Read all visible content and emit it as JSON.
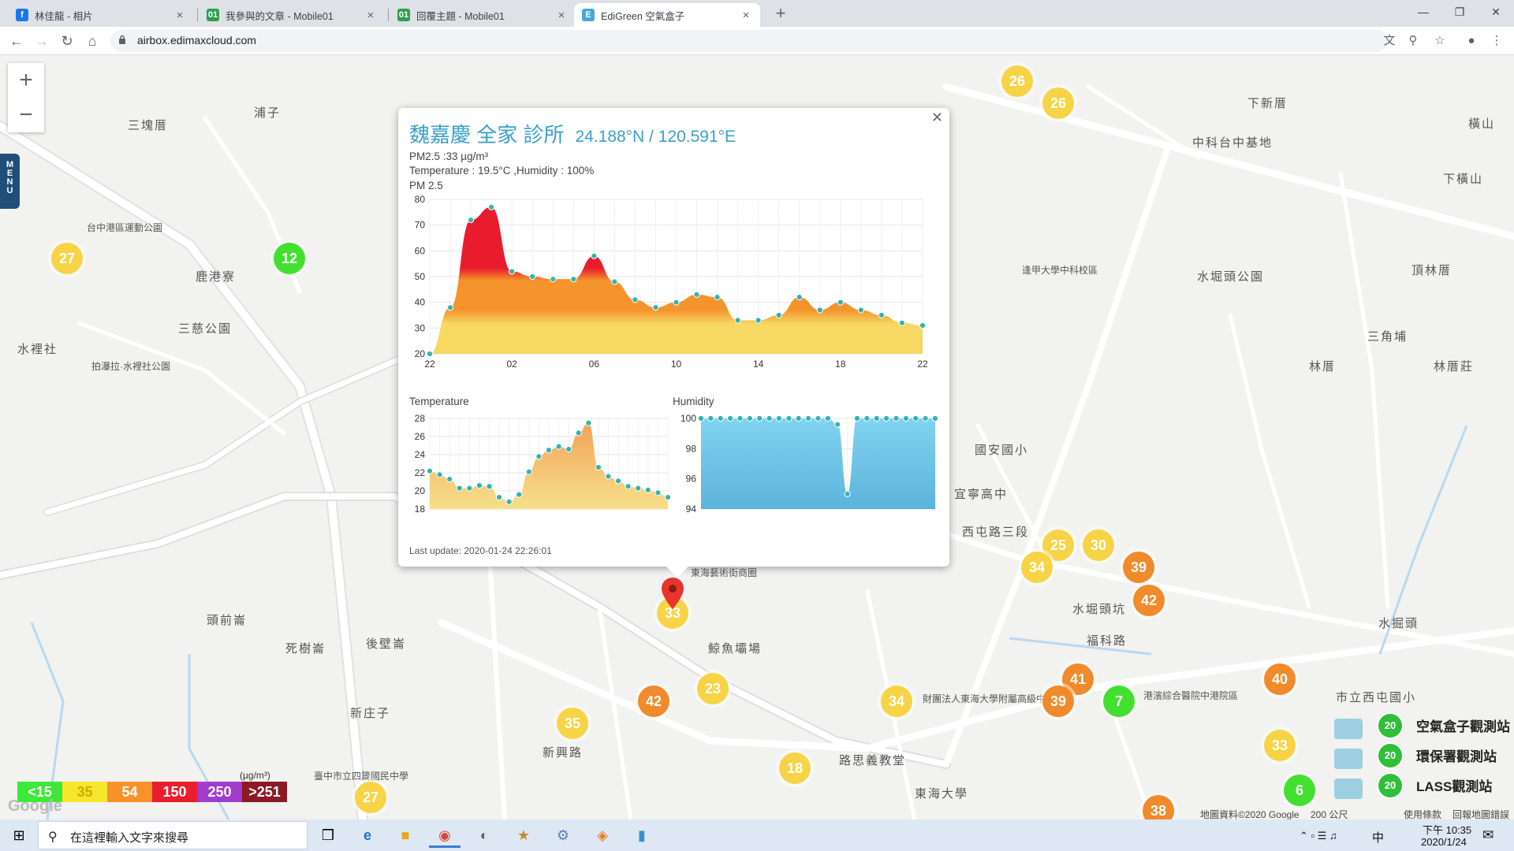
{
  "browser": {
    "tabs": [
      {
        "title": "林佳龍 - 相片",
        "favicon": "facebook-icon",
        "color": "#1877f2",
        "glyph": "f"
      },
      {
        "title": "我參與的文章 - Mobile01",
        "favicon": "mobile01-icon",
        "color": "#2e9e4f",
        "glyph": "01"
      },
      {
        "title": "回覆主題 - Mobile01",
        "favicon": "mobile01-icon",
        "color": "#2e9e4f",
        "glyph": "01"
      },
      {
        "title": "EdiGreen 空氣盒子",
        "favicon": "edigreen-icon",
        "color": "#44a7d8",
        "glyph": "E"
      }
    ],
    "url": "airbox.edimaxcloud.com"
  },
  "map": {
    "labels": [
      {
        "text": "三塊厝",
        "x": 162,
        "y": 148
      },
      {
        "text": "浦子",
        "x": 322,
        "y": 132
      },
      {
        "text": "台中港區運動公園",
        "x": 110,
        "y": 280
      },
      {
        "text": "鹿港寮",
        "x": 248,
        "y": 340
      },
      {
        "text": "三慈公園",
        "x": 226,
        "y": 406
      },
      {
        "text": "水裡社",
        "x": 22,
        "y": 432
      },
      {
        "text": "拍瀑拉·水裡社公園",
        "x": 116,
        "y": 456
      },
      {
        "text": "頭前崙",
        "x": 262,
        "y": 776
      },
      {
        "text": "死樹崙",
        "x": 362,
        "y": 812
      },
      {
        "text": "後壁崙",
        "x": 464,
        "y": 806
      },
      {
        "text": "新庄子",
        "x": 444,
        "y": 894
      },
      {
        "text": "臺中市立四箴國民中學",
        "x": 398,
        "y": 976
      },
      {
        "text": "東海藝術街商圈",
        "x": 876,
        "y": 718
      },
      {
        "text": "鯨魚壩場",
        "x": 898,
        "y": 812
      },
      {
        "text": "新興路",
        "x": 688,
        "y": 944
      },
      {
        "text": "路思義教堂",
        "x": 1064,
        "y": 954
      },
      {
        "text": "東海大學",
        "x": 1160,
        "y": 996
      },
      {
        "text": "財團法人東海大學附屬高級中等學校",
        "x": 1170,
        "y": 878
      },
      {
        "text": "中科台中基地",
        "x": 1512,
        "y": 170
      },
      {
        "text": "下新厝",
        "x": 1582,
        "y": 120
      },
      {
        "text": "橫山",
        "x": 1862,
        "y": 146
      },
      {
        "text": "下橫山",
        "x": 1830,
        "y": 216
      },
      {
        "text": "頂林厝",
        "x": 1790,
        "y": 332
      },
      {
        "text": "水堀頭公園",
        "x": 1518,
        "y": 340
      },
      {
        "text": "逢甲大學中科校區",
        "x": 1296,
        "y": 334
      },
      {
        "text": "三角埔",
        "x": 1734,
        "y": 416
      },
      {
        "text": "林厝",
        "x": 1660,
        "y": 454
      },
      {
        "text": "林厝莊",
        "x": 1818,
        "y": 454
      },
      {
        "text": "國安國小",
        "x": 1236,
        "y": 560
      },
      {
        "text": "宜寧高中",
        "x": 1210,
        "y": 616
      },
      {
        "text": "西屯路三段",
        "x": 1220,
        "y": 664
      },
      {
        "text": "水堀頭坑",
        "x": 1360,
        "y": 762
      },
      {
        "text": "福科路",
        "x": 1378,
        "y": 802
      },
      {
        "text": "水掘頭",
        "x": 1748,
        "y": 780
      },
      {
        "text": "港濱綜合醫院中港院區",
        "x": 1450,
        "y": 874
      },
      {
        "text": "市立西屯國小",
        "x": 1694,
        "y": 874
      }
    ],
    "markers": [
      {
        "value": "27",
        "x": 85,
        "y": 328,
        "level": "y"
      },
      {
        "value": "12",
        "x": 367,
        "y": 328,
        "level": "g"
      },
      {
        "value": "26",
        "x": 1290,
        "y": 103,
        "level": "y"
      },
      {
        "value": "26",
        "x": 1342,
        "y": 131,
        "level": "y"
      },
      {
        "value": "25",
        "x": 1342,
        "y": 692,
        "level": "y"
      },
      {
        "value": "30",
        "x": 1393,
        "y": 692,
        "level": "y"
      },
      {
        "value": "34",
        "x": 1315,
        "y": 720,
        "level": "y"
      },
      {
        "value": "39",
        "x": 1444,
        "y": 720,
        "level": "o"
      },
      {
        "value": "42",
        "x": 1457,
        "y": 762,
        "level": "o"
      },
      {
        "value": "33",
        "x": 853,
        "y": 778,
        "level": "y"
      },
      {
        "value": "42",
        "x": 829,
        "y": 890,
        "level": "o"
      },
      {
        "value": "23",
        "x": 904,
        "y": 874,
        "level": "y"
      },
      {
        "value": "35",
        "x": 726,
        "y": 918,
        "level": "y"
      },
      {
        "value": "34",
        "x": 1137,
        "y": 890,
        "level": "y"
      },
      {
        "value": "41",
        "x": 1367,
        "y": 862,
        "level": "o"
      },
      {
        "value": "39",
        "x": 1342,
        "y": 890,
        "level": "o"
      },
      {
        "value": "7",
        "x": 1419,
        "y": 890,
        "level": "g"
      },
      {
        "value": "40",
        "x": 1623,
        "y": 862,
        "level": "o"
      },
      {
        "value": "33",
        "x": 1623,
        "y": 946,
        "level": "y"
      },
      {
        "value": "18",
        "x": 1008,
        "y": 975,
        "level": "y"
      },
      {
        "value": "27",
        "x": 470,
        "y": 1012,
        "level": "y"
      },
      {
        "value": "6",
        "x": 1648,
        "y": 1003,
        "level": "g"
      },
      {
        "value": "38",
        "x": 1469,
        "y": 1029,
        "level": "o"
      }
    ],
    "legend": [
      {
        "label": "<15",
        "color": "#3ee83a"
      },
      {
        "label": "35",
        "color": "#f6e62c"
      },
      {
        "label": "54",
        "color": "#f7922b"
      },
      {
        "label": "150",
        "color": "#ea1d2c"
      },
      {
        "label": "250",
        "color": "#a13cce"
      },
      {
        "label": ">251",
        "color": "#8a1b25"
      }
    ],
    "legend_unit": "(µg/m³)",
    "station_legend": [
      {
        "badge": "20",
        "label": "空氣盒子觀測站",
        "icon": "airbox-station-icon"
      },
      {
        "badge": "20",
        "label": "環保署觀測站",
        "icon": "epa-station-icon"
      },
      {
        "badge": "20",
        "label": "LASS觀測站",
        "icon": "lass-station-icon"
      }
    ],
    "attribution": "地圖資料©2020 Google",
    "scale": "200 公尺",
    "terms": "使用條款",
    "report": "回報地圖錯誤",
    "google": "Google",
    "menu_label": "MENU"
  },
  "popup": {
    "station_name": "魏嘉慶 全家 診所",
    "coords": "24.188°N / 120.591°E",
    "pm25": "PM2.5 :33 µg/m³",
    "temp_hum": "Temperature : 19.5°C ,Humidity : 100%",
    "pm_label": "PM 2.5",
    "temp_label": "Temperature",
    "hum_label": "Humidity",
    "last_update": "Last update: 2020-01-24 22:26:01"
  },
  "chart_data": [
    {
      "type": "area",
      "title": "PM 2.5",
      "x_ticks": [
        "22",
        "02",
        "06",
        "10",
        "14",
        "18",
        "22"
      ],
      "ylim": [
        20,
        80
      ],
      "y_ticks": [
        20,
        30,
        40,
        50,
        60,
        70,
        80
      ],
      "values": [
        20,
        38,
        72,
        77,
        52,
        50,
        49,
        49,
        58,
        48,
        41,
        38,
        40,
        43,
        42,
        33,
        33,
        35,
        42,
        37,
        40,
        37,
        35,
        32,
        31
      ],
      "grid": true
    },
    {
      "type": "area",
      "title": "Temperature",
      "ylim": [
        18,
        28
      ],
      "y_ticks": [
        18,
        20,
        22,
        24,
        26,
        28
      ],
      "values": [
        22.2,
        21.8,
        21.3,
        20.3,
        20.3,
        20.6,
        20.5,
        19.3,
        18.8,
        19.6,
        22.1,
        23.8,
        24.5,
        24.9,
        24.6,
        26.4,
        27.5,
        22.6,
        21.6,
        21.1,
        20.5,
        20.3,
        20.1,
        19.8,
        19.3
      ],
      "grid": true
    },
    {
      "type": "area",
      "title": "Humidity",
      "ylim": [
        94,
        100
      ],
      "y_ticks": [
        94,
        96,
        98,
        100
      ],
      "values": [
        100,
        100,
        100,
        100,
        100,
        100,
        100,
        100,
        100,
        100,
        100,
        100,
        100,
        100,
        99.6,
        95.0,
        100,
        100,
        100,
        100,
        100,
        100,
        100,
        100,
        100
      ],
      "grid": true
    }
  ],
  "taskbar": {
    "search_placeholder": "在這裡輸入文字來搜尋",
    "time": "下午 10:35",
    "date": "2020/1/24",
    "ime": "中"
  }
}
